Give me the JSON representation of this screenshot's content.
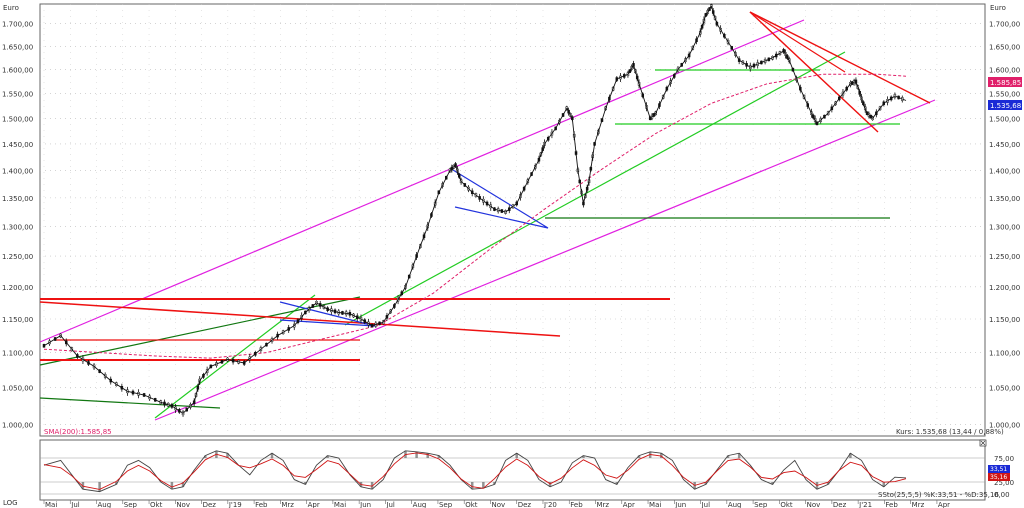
{
  "chart_data": {
    "type": "line",
    "currency_label": "Euro",
    "scale_label": "LOG",
    "y_ticks": [
      "1.000,00",
      "1.050,00",
      "1.100,00",
      "1.150,00",
      "1.200,00",
      "1.250,00",
      "1.300,00",
      "1.350,00",
      "1.400,00",
      "1.450,00",
      "1.500,00",
      "1.550,00",
      "1.600,00",
      "1.650,00",
      "1.700,00"
    ],
    "y_tick_values": [
      1000,
      1050,
      1100,
      1150,
      1200,
      1250,
      1300,
      1350,
      1400,
      1450,
      1500,
      1550,
      1600,
      1650,
      1700
    ],
    "ylim": [
      985,
      1745
    ],
    "x_ticks": [
      "Mai",
      "Jul",
      "Aug",
      "Sep",
      "Okt",
      "Nov",
      "Dez",
      "J'19",
      "Feb",
      "Mrz",
      "Apr",
      "Mai",
      "Jun",
      "Jul",
      "Aug",
      "Sep",
      "Okt",
      "Nov",
      "Dez",
      "J'20",
      "Feb",
      "Mrz",
      "Apr",
      "Mai",
      "Jun",
      "Jul",
      "Aug",
      "Sep",
      "Okt",
      "Nov",
      "Dez",
      "J'21",
      "Feb",
      "Mrz",
      "Apr"
    ],
    "price_path": [
      [
        0,
        1110
      ],
      [
        3,
        1125
      ],
      [
        6,
        1095
      ],
      [
        9,
        1080
      ],
      [
        12,
        1060
      ],
      [
        15,
        1045
      ],
      [
        18,
        1040
      ],
      [
        21,
        1030
      ],
      [
        23,
        1025
      ],
      [
        25,
        1015
      ],
      [
        27,
        1030
      ],
      [
        28,
        1060
      ],
      [
        30,
        1080
      ],
      [
        33,
        1090
      ],
      [
        36,
        1085
      ],
      [
        39,
        1105
      ],
      [
        42,
        1125
      ],
      [
        45,
        1140
      ],
      [
        47,
        1160
      ],
      [
        49,
        1175
      ],
      [
        51,
        1165
      ],
      [
        53,
        1160
      ],
      [
        55,
        1158
      ],
      [
        57,
        1150
      ],
      [
        59,
        1140
      ],
      [
        61,
        1145
      ],
      [
        63,
        1170
      ],
      [
        65,
        1200
      ],
      [
        67,
        1250
      ],
      [
        69,
        1300
      ],
      [
        71,
        1360
      ],
      [
        73,
        1400
      ],
      [
        74,
        1410
      ],
      [
        75,
        1380
      ],
      [
        77,
        1360
      ],
      [
        79,
        1345
      ],
      [
        81,
        1330
      ],
      [
        83,
        1325
      ],
      [
        85,
        1340
      ],
      [
        87,
        1380
      ],
      [
        89,
        1420
      ],
      [
        90,
        1450
      ],
      [
        92,
        1480
      ],
      [
        94,
        1520
      ],
      [
        95,
        1500
      ],
      [
        96,
        1400
      ],
      [
        97,
        1340
      ],
      [
        98,
        1380
      ],
      [
        99,
        1450
      ],
      [
        101,
        1520
      ],
      [
        103,
        1580
      ],
      [
        105,
        1590
      ],
      [
        106,
        1610
      ],
      [
        107,
        1570
      ],
      [
        109,
        1500
      ],
      [
        110,
        1510
      ],
      [
        112,
        1560
      ],
      [
        114,
        1600
      ],
      [
        116,
        1630
      ],
      [
        118,
        1680
      ],
      [
        119,
        1720
      ],
      [
        120,
        1740
      ],
      [
        121,
        1700
      ],
      [
        123,
        1660
      ],
      [
        125,
        1620
      ],
      [
        127,
        1605
      ],
      [
        129,
        1615
      ],
      [
        131,
        1625
      ],
      [
        133,
        1640
      ],
      [
        134,
        1620
      ],
      [
        136,
        1560
      ],
      [
        138,
        1510
      ],
      [
        139,
        1490
      ],
      [
        141,
        1510
      ],
      [
        143,
        1540
      ],
      [
        145,
        1570
      ],
      [
        146,
        1575
      ],
      [
        147,
        1540
      ],
      [
        148,
        1510
      ],
      [
        149,
        1500
      ],
      [
        151,
        1530
      ],
      [
        153,
        1545
      ],
      [
        155,
        1535.68
      ]
    ],
    "sma200_path": [
      [
        0,
        1105
      ],
      [
        10,
        1100
      ],
      [
        20,
        1095
      ],
      [
        30,
        1092
      ],
      [
        40,
        1100
      ],
      [
        50,
        1120
      ],
      [
        60,
        1140
      ],
      [
        70,
        1190
      ],
      [
        80,
        1260
      ],
      [
        90,
        1330
      ],
      [
        100,
        1400
      ],
      [
        110,
        1470
      ],
      [
        120,
        1530
      ],
      [
        130,
        1570
      ],
      [
        140,
        1590
      ],
      [
        150,
        1590
      ],
      [
        155,
        1585.85
      ]
    ],
    "sma200_label": "SMA(200):1.585,85",
    "last_price": "1.535,68",
    "sma_price": "1.585,85",
    "status_text": "Kurs: 1.535,68 (13,44 / 0,88%)",
    "oscillator": {
      "label": "SSto(25,5,5) %K:33,51 - %D:35,16",
      "ticks": [
        "75,00",
        "25,00",
        "0,00"
      ],
      "tick_values": [
        75,
        25,
        0
      ],
      "k_value": "33,51",
      "d_value": "35,16",
      "k_path": [
        [
          0,
          60
        ],
        [
          3,
          70
        ],
        [
          5,
          40
        ],
        [
          7,
          10
        ],
        [
          10,
          5
        ],
        [
          13,
          20
        ],
        [
          15,
          60
        ],
        [
          17,
          70
        ],
        [
          19,
          55
        ],
        [
          21,
          25
        ],
        [
          23,
          10
        ],
        [
          25,
          15
        ],
        [
          27,
          50
        ],
        [
          29,
          80
        ],
        [
          31,
          90
        ],
        [
          33,
          85
        ],
        [
          35,
          60
        ],
        [
          37,
          40
        ],
        [
          39,
          70
        ],
        [
          41,
          85
        ],
        [
          43,
          70
        ],
        [
          45,
          30
        ],
        [
          47,
          20
        ],
        [
          49,
          60
        ],
        [
          51,
          80
        ],
        [
          53,
          75
        ],
        [
          55,
          40
        ],
        [
          57,
          15
        ],
        [
          59,
          10
        ],
        [
          61,
          30
        ],
        [
          63,
          75
        ],
        [
          65,
          90
        ],
        [
          67,
          88
        ],
        [
          69,
          85
        ],
        [
          71,
          80
        ],
        [
          73,
          60
        ],
        [
          75,
          30
        ],
        [
          77,
          10
        ],
        [
          79,
          12
        ],
        [
          81,
          20
        ],
        [
          83,
          70
        ],
        [
          85,
          85
        ],
        [
          87,
          70
        ],
        [
          89,
          30
        ],
        [
          91,
          15
        ],
        [
          93,
          25
        ],
        [
          95,
          65
        ],
        [
          97,
          80
        ],
        [
          99,
          75
        ],
        [
          101,
          30
        ],
        [
          103,
          20
        ],
        [
          105,
          55
        ],
        [
          107,
          80
        ],
        [
          109,
          88
        ],
        [
          111,
          85
        ],
        [
          113,
          70
        ],
        [
          115,
          30
        ],
        [
          117,
          10
        ],
        [
          119,
          20
        ],
        [
          121,
          50
        ],
        [
          123,
          80
        ],
        [
          125,
          85
        ],
        [
          127,
          60
        ],
        [
          129,
          30
        ],
        [
          131,
          20
        ],
        [
          133,
          50
        ],
        [
          135,
          70
        ],
        [
          137,
          30
        ],
        [
          139,
          10
        ],
        [
          141,
          20
        ],
        [
          143,
          50
        ],
        [
          145,
          85
        ],
        [
          147,
          70
        ],
        [
          149,
          30
        ],
        [
          151,
          15
        ],
        [
          153,
          35
        ],
        [
          155,
          33.51
        ]
      ]
    }
  }
}
